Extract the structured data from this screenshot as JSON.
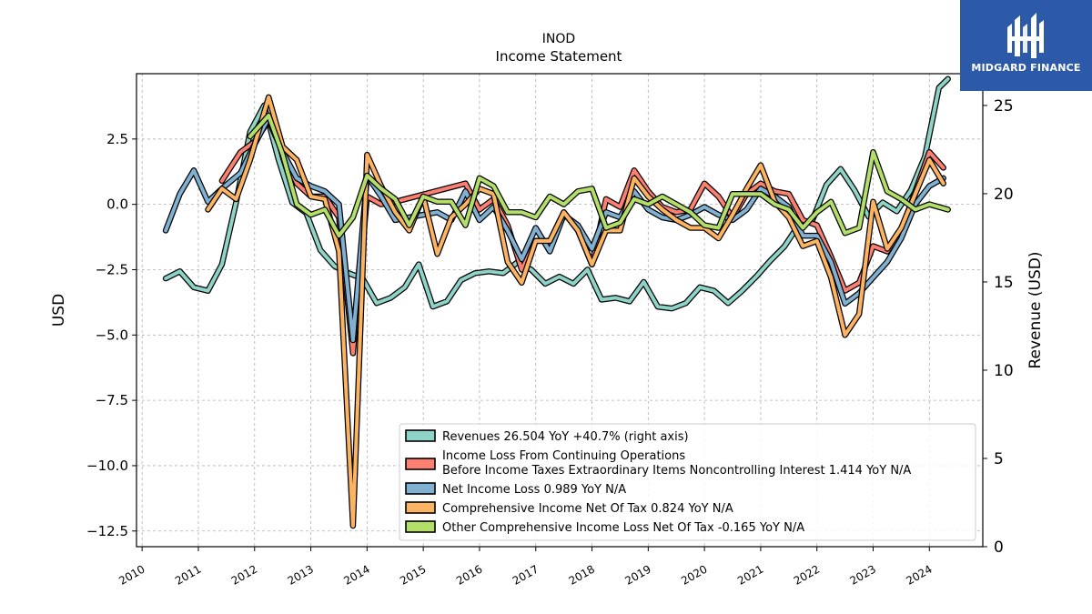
{
  "chart_data": {
    "type": "line",
    "title": "INOD",
    "subtitle": "Income Statement",
    "ylabel_left": "USD",
    "ylabel_right": "Revenue (USD)",
    "ylim_left": [
      -13.1,
      5.0
    ],
    "ylim_right": [
      0,
      26.8
    ],
    "yticks_left": [
      2.5,
      0.0,
      -2.5,
      -5.0,
      -7.5,
      -10.0,
      -12.5
    ],
    "yticks_left_labels": [
      "2.5",
      "0.0",
      "−2.5",
      "−5.0",
      "−7.5",
      "−10.0",
      "−12.5"
    ],
    "yticks_right": [
      0,
      5,
      10,
      15,
      20,
      25
    ],
    "xlim": [
      2009.9,
      2024.95
    ],
    "xticks": [
      2010,
      2011,
      2012,
      2013,
      2014,
      2015,
      2016,
      2017,
      2018,
      2019,
      2020,
      2021,
      2022,
      2023,
      2024
    ],
    "grid": true,
    "legend_position": "lower-right",
    "series": [
      {
        "name": "Revenues",
        "legend": "Revenues  26.504 YoY +40.7% (right axis)",
        "axis": "right",
        "color": "#8dd3c7",
        "x": [
          2010.42,
          2010.67,
          2010.92,
          2011.17,
          2011.42,
          2011.67,
          2011.92,
          2012.17,
          2012.42,
          2012.67,
          2012.92,
          2013.17,
          2013.42,
          2013.67,
          2013.92,
          2014.17,
          2014.42,
          2014.67,
          2014.92,
          2015.17,
          2015.42,
          2015.67,
          2015.92,
          2016.17,
          2016.42,
          2016.67,
          2016.92,
          2017.17,
          2017.42,
          2017.67,
          2017.92,
          2018.17,
          2018.42,
          2018.67,
          2018.92,
          2019.17,
          2019.42,
          2019.67,
          2019.92,
          2020.17,
          2020.42,
          2020.67,
          2020.92,
          2021.17,
          2021.42,
          2021.67,
          2021.92,
          2022.17,
          2022.42,
          2022.67,
          2022.92,
          2023.17,
          2023.42,
          2023.67,
          2023.92,
          2024.17,
          2024.33
        ],
        "y": [
          15.2,
          15.6,
          14.7,
          14.5,
          16.0,
          19.5,
          23.5,
          25.0,
          22.0,
          19.5,
          18.9,
          16.8,
          15.9,
          15.5,
          15.2,
          13.8,
          14.1,
          14.7,
          16.0,
          13.6,
          13.9,
          15.1,
          15.5,
          15.6,
          15.5,
          16.1,
          15.7,
          14.9,
          15.3,
          14.9,
          15.7,
          14.0,
          14.1,
          13.9,
          15.0,
          13.6,
          13.5,
          13.8,
          14.7,
          14.5,
          13.8,
          14.5,
          15.3,
          16.2,
          17.0,
          18.2,
          18.5,
          20.5,
          21.4,
          20.2,
          18.7,
          19.5,
          19.0,
          20.2,
          22.1,
          26.0,
          26.5
        ]
      },
      {
        "name": "Income Loss From Continuing Operations Before Income Taxes Extraordinary Items Noncontrolling Interest",
        "legend_line1": "Income Loss From Continuing Operations",
        "legend_line2": "Before Income Taxes Extraordinary Items Noncontrolling Interest  1.414 YoY N/A",
        "axis": "left",
        "color": "#fb8072",
        "x": [
          2011.42,
          2011.75,
          2012.0,
          2012.25,
          2012.5,
          2012.75,
          2013.0,
          2013.25,
          2013.5,
          2013.75,
          2014.0,
          2014.25,
          2014.5,
          2015.75,
          2016.0,
          2016.25,
          2016.5,
          2016.75,
          2017.0,
          2017.25,
          2017.5,
          2017.75,
          2018.0,
          2018.25,
          2018.5,
          2018.75,
          2019.0,
          2019.25,
          2019.5,
          2019.75,
          2020.0,
          2020.25,
          2020.5,
          2020.75,
          2021.0,
          2021.25,
          2021.5,
          2021.75,
          2022.0,
          2022.25,
          2022.5,
          2022.75,
          2023.0,
          2023.25,
          2023.5,
          2023.75,
          2024.0,
          2024.25
        ],
        "y": [
          0.9,
          2.0,
          2.4,
          3.2,
          2.0,
          0.8,
          0.3,
          0.3,
          -0.5,
          -5.7,
          0.3,
          0.0,
          0.1,
          0.8,
          -0.2,
          0.2,
          -0.8,
          -2.5,
          -1.4,
          -1.4,
          -0.3,
          -1.0,
          -2.3,
          0.2,
          -0.1,
          1.3,
          0.5,
          -0.1,
          -0.3,
          -0.2,
          0.8,
          0.3,
          -0.5,
          0.4,
          0.8,
          0.5,
          0.4,
          -0.6,
          -0.8,
          -2.0,
          -3.3,
          -3.0,
          -1.6,
          -1.8,
          -1.0,
          0.5,
          2.0,
          1.4
        ]
      },
      {
        "name": "Net Income Loss",
        "legend": "Net Income Loss  0.989 YoY N/A",
        "axis": "left",
        "color": "#80b1d3",
        "x": [
          2010.42,
          2010.67,
          2010.92,
          2011.17,
          2011.42,
          2011.75,
          2012.0,
          2012.25,
          2012.5,
          2012.75,
          2013.0,
          2013.25,
          2013.5,
          2013.75,
          2014.0,
          2014.25,
          2014.5,
          2014.75,
          2015.0,
          2015.25,
          2015.5,
          2015.75,
          2016.0,
          2016.25,
          2016.5,
          2016.75,
          2017.0,
          2017.25,
          2017.5,
          2017.75,
          2018.0,
          2018.25,
          2018.5,
          2018.75,
          2019.0,
          2019.25,
          2019.5,
          2019.75,
          2020.0,
          2020.25,
          2020.5,
          2020.75,
          2021.0,
          2021.25,
          2021.5,
          2021.75,
          2022.0,
          2022.25,
          2022.5,
          2022.75,
          2023.0,
          2023.25,
          2023.5,
          2023.75,
          2024.0,
          2024.25
        ],
        "y": [
          -1.0,
          0.4,
          1.3,
          0.1,
          0.6,
          1.2,
          2.3,
          3.3,
          2.0,
          1.0,
          0.7,
          0.5,
          0.0,
          -5.2,
          1.1,
          0.3,
          -0.6,
          -0.5,
          -0.4,
          -0.3,
          -0.6,
          0.5,
          -0.6,
          -0.1,
          -1.0,
          -2.1,
          -0.9,
          -1.8,
          -0.4,
          -0.8,
          -1.7,
          -0.3,
          -0.5,
          0.5,
          -0.2,
          -0.5,
          -0.6,
          -0.4,
          -0.1,
          -0.4,
          -0.6,
          -0.2,
          0.6,
          0.3,
          -0.1,
          -1.2,
          -1.2,
          -2.2,
          -3.8,
          -3.4,
          -2.8,
          -2.2,
          -1.3,
          0.0,
          0.7,
          1.0
        ]
      },
      {
        "name": "Comprehensive Income Net Of Tax",
        "legend": "Comprehensive Income Net Of Tax  0.824 YoY N/A",
        "axis": "left",
        "color": "#fdb462",
        "x": [
          2011.17,
          2011.42,
          2011.67,
          2011.92,
          2012.25,
          2012.5,
          2012.75,
          2013.0,
          2013.25,
          2013.5,
          2013.75,
          2014.0,
          2014.25,
          2014.5,
          2014.75,
          2015.0,
          2015.25,
          2015.5,
          2015.75,
          2016.0,
          2016.25,
          2016.5,
          2016.75,
          2017.0,
          2017.25,
          2017.5,
          2017.75,
          2018.0,
          2018.25,
          2018.5,
          2018.75,
          2019.0,
          2019.25,
          2019.5,
          2019.75,
          2020.0,
          2020.25,
          2020.5,
          2020.75,
          2021.0,
          2021.25,
          2021.5,
          2021.75,
          2022.0,
          2022.25,
          2022.5,
          2022.75,
          2023.0,
          2023.25,
          2023.5,
          2023.75,
          2024.0,
          2024.25
        ],
        "y": [
          -0.2,
          0.6,
          0.2,
          1.7,
          4.1,
          2.2,
          1.7,
          0.3,
          0.2,
          -1.8,
          -12.3,
          1.9,
          0.7,
          -0.3,
          -1.0,
          0.3,
          -1.9,
          -0.5,
          0.0,
          0.6,
          0.4,
          -2.2,
          -3.0,
          -1.4,
          -1.4,
          -0.3,
          -1.0,
          -2.3,
          -1.0,
          -1.0,
          1.0,
          0.3,
          -0.2,
          -0.6,
          -0.9,
          -0.9,
          -1.3,
          -0.4,
          0.6,
          1.5,
          0.1,
          -0.5,
          -1.6,
          -1.4,
          -2.8,
          -5.0,
          -4.2,
          0.1,
          -1.7,
          -0.9,
          0.4,
          1.7,
          0.8
        ]
      },
      {
        "name": "Other Comprehensive Income Loss Net Of Tax",
        "legend": "Other Comprehensive Income Loss Net Of Tax  -0.165 YoY N/A",
        "axis": "left",
        "color": "#b3de69",
        "x": [
          2011.92,
          2012.25,
          2012.5,
          2012.75,
          2013.0,
          2013.25,
          2013.5,
          2013.75,
          2014.0,
          2014.25,
          2014.5,
          2014.75,
          2015.0,
          2015.25,
          2015.5,
          2015.75,
          2016.0,
          2016.25,
          2016.5,
          2016.75,
          2017.0,
          2017.25,
          2017.5,
          2017.75,
          2018.0,
          2018.25,
          2018.5,
          2018.75,
          2019.0,
          2019.25,
          2019.5,
          2019.75,
          2020.0,
          2020.25,
          2020.5,
          2020.75,
          2021.0,
          2021.25,
          2021.5,
          2021.75,
          2022.0,
          2022.25,
          2022.5,
          2022.75,
          2023.0,
          2023.25,
          2023.5,
          2023.75,
          2024.0,
          2024.33
        ],
        "y": [
          2.6,
          3.4,
          1.9,
          0.0,
          -0.4,
          -0.2,
          -1.2,
          -0.5,
          1.1,
          0.6,
          0.2,
          -0.8,
          0.3,
          0.1,
          0.1,
          -0.8,
          1.0,
          0.7,
          -0.3,
          -0.3,
          -0.5,
          0.3,
          0.0,
          0.5,
          0.6,
          -0.9,
          -0.7,
          0.2,
          0.0,
          0.3,
          0.0,
          -0.3,
          -0.8,
          -0.9,
          0.4,
          0.4,
          0.4,
          0.0,
          -0.2,
          -0.9,
          -0.3,
          0.1,
          -1.1,
          -0.9,
          2.0,
          0.5,
          0.2,
          -0.2,
          0.0,
          -0.2
        ]
      }
    ]
  },
  "logo": {
    "brand": "MIDGARD FINANCE",
    "bg_color": "#2c5aa8"
  }
}
